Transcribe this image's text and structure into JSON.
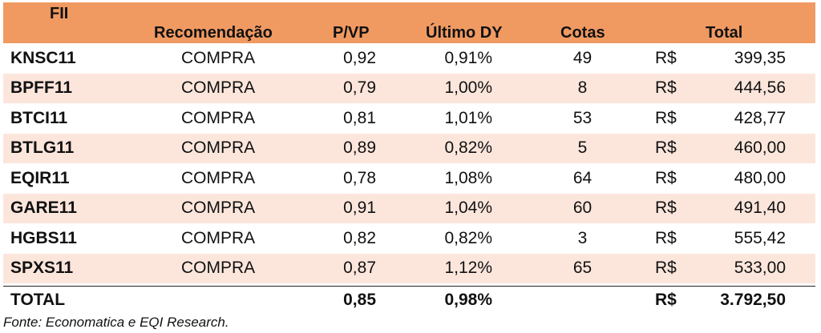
{
  "headers": {
    "fii": "FII",
    "recomendacao": "Recomendação",
    "pvp": "P/VP",
    "dy": "Último DY",
    "cotas": "Cotas",
    "total": "Total"
  },
  "rows": [
    {
      "fii": "KNSC11",
      "rec": "COMPRA",
      "pvp": "0,92",
      "dy": "0,91%",
      "cotas": "49",
      "cur": "R$",
      "total": "399,35"
    },
    {
      "fii": "BPFF11",
      "rec": "COMPRA",
      "pvp": "0,79",
      "dy": "1,00%",
      "cotas": "8",
      "cur": "R$",
      "total": "444,56"
    },
    {
      "fii": "BTCI11",
      "rec": "COMPRA",
      "pvp": "0,81",
      "dy": "1,01%",
      "cotas": "53",
      "cur": "R$",
      "total": "428,77"
    },
    {
      "fii": "BTLG11",
      "rec": "COMPRA",
      "pvp": "0,89",
      "dy": "0,82%",
      "cotas": "5",
      "cur": "R$",
      "total": "460,00"
    },
    {
      "fii": "EQIR11",
      "rec": "COMPRA",
      "pvp": "0,78",
      "dy": "1,08%",
      "cotas": "64",
      "cur": "R$",
      "total": "480,00"
    },
    {
      "fii": "GARE11",
      "rec": "COMPRA",
      "pvp": "0,91",
      "dy": "1,04%",
      "cotas": "60",
      "cur": "R$",
      "total": "491,40"
    },
    {
      "fii": "HGBS11",
      "rec": "COMPRA",
      "pvp": "0,82",
      "dy": "0,82%",
      "cotas": "3",
      "cur": "R$",
      "total": "555,42"
    },
    {
      "fii": "SPXS11",
      "rec": "COMPRA",
      "pvp": "0,87",
      "dy": "1,12%",
      "cotas": "65",
      "cur": "R$",
      "total": "533,00"
    }
  ],
  "total": {
    "label": "TOTAL",
    "pvp": "0,85",
    "dy": "0,98%",
    "cur": "R$",
    "total": "3.792,50"
  },
  "source": "Fonte: Economatica e EQI Research.",
  "colors": {
    "header_bg": "#f09a62",
    "alt_row_bg": "#fce6dc"
  }
}
